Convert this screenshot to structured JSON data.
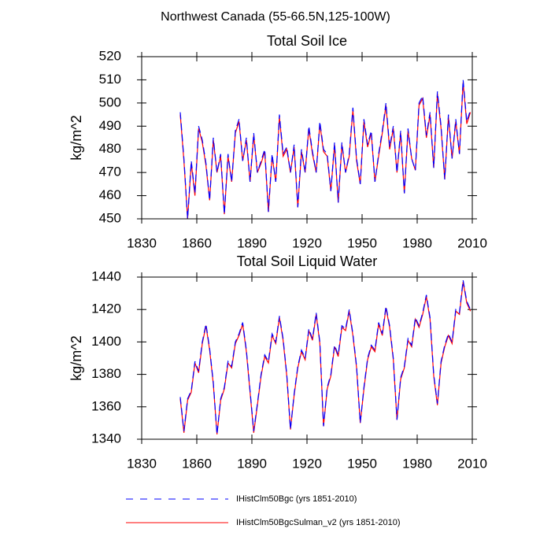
{
  "title": "Northwest Canada (55-66.5N,125-100W)",
  "chart_data": [
    {
      "type": "line",
      "title": "Total Soil Ice",
      "y_label": "kg/m^2",
      "xlim": [
        1830,
        2010
      ],
      "xticks": [
        1830,
        1860,
        1890,
        1920,
        1950,
        1980,
        2010
      ],
      "ylim": [
        450,
        520
      ],
      "yticks": [
        450,
        460,
        470,
        480,
        490,
        500,
        510,
        520
      ],
      "x": [
        1851,
        1853,
        1855,
        1857,
        1859,
        1861,
        1863,
        1865,
        1867,
        1869,
        1871,
        1873,
        1875,
        1877,
        1879,
        1881,
        1883,
        1885,
        1887,
        1889,
        1891,
        1893,
        1895,
        1897,
        1899,
        1901,
        1903,
        1905,
        1907,
        1909,
        1911,
        1913,
        1915,
        1917,
        1919,
        1921,
        1923,
        1925,
        1927,
        1929,
        1931,
        1933,
        1935,
        1937,
        1939,
        1941,
        1943,
        1945,
        1947,
        1949,
        1951,
        1953,
        1955,
        1957,
        1959,
        1961,
        1963,
        1965,
        1967,
        1969,
        1971,
        1973,
        1975,
        1977,
        1979,
        1981,
        1983,
        1985,
        1987,
        1989,
        1991,
        1993,
        1995,
        1997,
        1999,
        2001,
        2003,
        2005,
        2007,
        2009
      ],
      "series": [
        {
          "name": "IHistClm50Bgc (yrs 1851-2010)",
          "color": "#0000ff",
          "dash": true,
          "values": [
            496,
            476,
            450,
            475,
            461,
            490,
            484,
            474,
            458,
            485,
            470,
            478,
            452,
            478,
            466,
            488,
            493,
            475,
            485,
            466,
            487,
            470,
            475,
            480,
            453,
            478,
            466,
            495,
            478,
            481,
            470,
            482,
            455,
            480,
            470,
            490,
            479,
            470,
            492,
            480,
            478,
            462,
            483,
            457,
            483,
            470,
            478,
            498,
            476,
            465,
            493,
            482,
            488,
            466,
            478,
            488,
            500,
            481,
            490,
            470,
            488,
            461,
            489,
            476,
            471,
            500,
            503,
            486,
            496,
            472,
            505,
            490,
            467,
            495,
            476,
            493,
            478,
            510,
            492,
            497
          ]
        },
        {
          "name": "IHistClm50BgcSulman_v2 (yrs 1851-2010)",
          "color": "#ff0000",
          "dash": false,
          "values": [
            495,
            475,
            450,
            474,
            460,
            489,
            483,
            473,
            458,
            484,
            470,
            477,
            452,
            477,
            466,
            487,
            492,
            475,
            484,
            466,
            486,
            470,
            474,
            479,
            453,
            477,
            466,
            494,
            477,
            480,
            470,
            481,
            455,
            479,
            470,
            489,
            478,
            470,
            491,
            479,
            477,
            462,
            482,
            457,
            482,
            470,
            477,
            497,
            475,
            465,
            492,
            481,
            487,
            466,
            477,
            487,
            499,
            480,
            489,
            470,
            487,
            461,
            488,
            476,
            471,
            499,
            502,
            485,
            495,
            472,
            504,
            489,
            467,
            494,
            476,
            492,
            478,
            509,
            491,
            496
          ]
        }
      ]
    },
    {
      "type": "line",
      "title": "Total Soil Liquid Water",
      "y_label": "kg/m^2",
      "xlim": [
        1830,
        2010
      ],
      "xticks": [
        1830,
        1860,
        1890,
        1920,
        1950,
        1980,
        2010
      ],
      "ylim": [
        1340,
        1440
      ],
      "yticks": [
        1340,
        1360,
        1380,
        1400,
        1420,
        1440
      ],
      "x": [
        1851,
        1853,
        1855,
        1857,
        1859,
        1861,
        1863,
        1865,
        1867,
        1869,
        1871,
        1873,
        1875,
        1877,
        1879,
        1881,
        1883,
        1885,
        1887,
        1889,
        1891,
        1893,
        1895,
        1897,
        1899,
        1901,
        1903,
        1905,
        1907,
        1909,
        1911,
        1913,
        1915,
        1917,
        1919,
        1921,
        1923,
        1925,
        1927,
        1929,
        1931,
        1933,
        1935,
        1937,
        1939,
        1941,
        1943,
        1945,
        1947,
        1949,
        1951,
        1953,
        1955,
        1957,
        1959,
        1961,
        1963,
        1965,
        1967,
        1969,
        1971,
        1973,
        1975,
        1977,
        1979,
        1981,
        1983,
        1985,
        1987,
        1989,
        1991,
        1993,
        1995,
        1997,
        1999,
        2001,
        2003,
        2005,
        2007,
        2009
      ],
      "series": [
        {
          "color": "#0000ff",
          "dash": true,
          "values": [
            1366,
            1345,
            1365,
            1370,
            1388,
            1382,
            1400,
            1411,
            1396,
            1375,
            1343,
            1365,
            1372,
            1388,
            1385,
            1400,
            1405,
            1412,
            1395,
            1370,
            1345,
            1362,
            1380,
            1392,
            1388,
            1405,
            1400,
            1416,
            1402,
            1380,
            1346,
            1368,
            1385,
            1395,
            1390,
            1408,
            1402,
            1418,
            1400,
            1348,
            1372,
            1380,
            1398,
            1392,
            1410,
            1408,
            1420,
            1405,
            1385,
            1350,
            1372,
            1390,
            1398,
            1395,
            1412,
            1405,
            1422,
            1410,
            1390,
            1352,
            1378,
            1385,
            1402,
            1398,
            1415,
            1410,
            1418,
            1429,
            1415,
            1380,
            1362,
            1388,
            1398,
            1405,
            1400,
            1420,
            1418,
            1438,
            1425,
            1420
          ]
        },
        {
          "color": "#ff0000",
          "dash": false,
          "values": [
            1365,
            1344,
            1364,
            1369,
            1387,
            1381,
            1399,
            1410,
            1395,
            1374,
            1343,
            1364,
            1371,
            1387,
            1384,
            1399,
            1404,
            1411,
            1394,
            1369,
            1344,
            1361,
            1379,
            1391,
            1387,
            1404,
            1399,
            1415,
            1401,
            1379,
            1346,
            1367,
            1384,
            1394,
            1389,
            1407,
            1401,
            1417,
            1399,
            1348,
            1371,
            1379,
            1397,
            1391,
            1409,
            1407,
            1419,
            1404,
            1384,
            1350,
            1371,
            1389,
            1397,
            1394,
            1411,
            1404,
            1421,
            1409,
            1389,
            1352,
            1377,
            1384,
            1401,
            1397,
            1414,
            1409,
            1417,
            1428,
            1414,
            1379,
            1361,
            1387,
            1397,
            1404,
            1399,
            1419,
            1417,
            1437,
            1424,
            1419
          ]
        }
      ]
    }
  ]
}
